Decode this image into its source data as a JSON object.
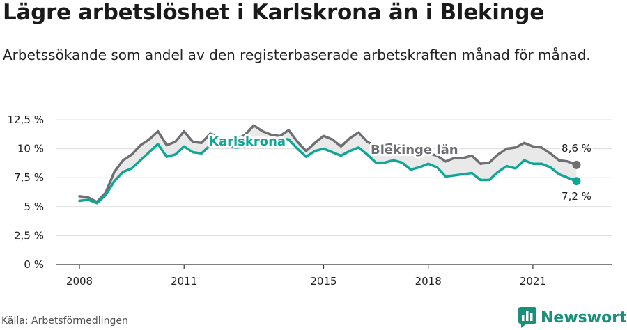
{
  "header": {
    "title": "Lägre arbetslöshet i Karlskrona än i Blekinge",
    "subtitle": "Arbetssökande som andel av den registerbaserade arbetskraften månad för månad."
  },
  "footer": {
    "source": "Källa: Arbetsförmedlingen",
    "brand": "Newsworthy"
  },
  "colors": {
    "karlskrona": "#10a696",
    "blekinge": "#6f6f73",
    "band": "#e4e4e4",
    "brand": "#1a8f7a"
  },
  "icons": {
    "brand_logo": "bar-chart-logo-icon"
  },
  "chart_data": {
    "type": "line",
    "title": "Lägre arbetslöshet i Karlskrona än i Blekinge",
    "subtitle": "Arbetssökande som andel av den registerbaserade arbetskraften månad för månad.",
    "xlim": [
      2008,
      2022.5
    ],
    "ylim": [
      0,
      12.5
    ],
    "x_ticks": [
      {
        "value": 2008,
        "label": "2008"
      },
      {
        "value": 2011,
        "label": "2011"
      },
      {
        "value": 2015,
        "label": "2015"
      },
      {
        "value": 2018,
        "label": "2018"
      },
      {
        "value": 2021,
        "label": "2021"
      }
    ],
    "y_ticks": [
      {
        "value": 0,
        "label": "0 %"
      },
      {
        "value": 2.5,
        "label": "2,5 %"
      },
      {
        "value": 5,
        "label": "5 %"
      },
      {
        "value": 7.5,
        "label": "7,5 %"
      },
      {
        "value": 10,
        "label": "10 %"
      },
      {
        "value": 12.5,
        "label": "12,5 %"
      }
    ],
    "grid": "horizontal",
    "series": [
      {
        "name": "Karlskrona",
        "label": "Karlskrona",
        "end_label": "7,2 %",
        "end_value": 7.2,
        "points": [
          [
            2008.0,
            5.5
          ],
          [
            2008.25,
            5.6
          ],
          [
            2008.5,
            5.3
          ],
          [
            2008.75,
            6.0
          ],
          [
            2009.0,
            7.2
          ],
          [
            2009.25,
            8.0
          ],
          [
            2009.5,
            8.3
          ],
          [
            2009.75,
            9.0
          ],
          [
            2010.0,
            9.7
          ],
          [
            2010.25,
            10.4
          ],
          [
            2010.5,
            9.3
          ],
          [
            2010.75,
            9.5
          ],
          [
            2011.0,
            10.2
          ],
          [
            2011.25,
            9.7
          ],
          [
            2011.5,
            9.6
          ],
          [
            2011.75,
            10.3
          ],
          [
            2012.0,
            10.3
          ],
          [
            2012.25,
            10.2
          ],
          [
            2012.5,
            10.1
          ],
          [
            2012.75,
            10.2
          ],
          [
            2013.0,
            10.5
          ],
          [
            2013.25,
            10.6
          ],
          [
            2013.5,
            10.7
          ],
          [
            2013.75,
            10.9
          ],
          [
            2014.0,
            10.8
          ],
          [
            2014.25,
            10.0
          ],
          [
            2014.5,
            9.3
          ],
          [
            2014.75,
            9.8
          ],
          [
            2015.0,
            10.0
          ],
          [
            2015.25,
            9.7
          ],
          [
            2015.5,
            9.4
          ],
          [
            2015.75,
            9.8
          ],
          [
            2016.0,
            10.1
          ],
          [
            2016.25,
            9.5
          ],
          [
            2016.5,
            8.8
          ],
          [
            2016.75,
            8.8
          ],
          [
            2017.0,
            9.0
          ],
          [
            2017.25,
            8.8
          ],
          [
            2017.5,
            8.2
          ],
          [
            2017.75,
            8.4
          ],
          [
            2018.0,
            8.7
          ],
          [
            2018.25,
            8.4
          ],
          [
            2018.5,
            7.6
          ],
          [
            2018.75,
            7.7
          ],
          [
            2019.0,
            7.8
          ],
          [
            2019.25,
            7.9
          ],
          [
            2019.5,
            7.3
          ],
          [
            2019.75,
            7.3
          ],
          [
            2020.0,
            8.0
          ],
          [
            2020.25,
            8.5
          ],
          [
            2020.5,
            8.3
          ],
          [
            2020.75,
            9.0
          ],
          [
            2021.0,
            8.7
          ],
          [
            2021.25,
            8.7
          ],
          [
            2021.5,
            8.4
          ],
          [
            2021.75,
            7.8
          ],
          [
            2022.0,
            7.5
          ],
          [
            2022.25,
            7.2
          ]
        ]
      },
      {
        "name": "Blekinge län",
        "label": "Blekinge län",
        "end_label": "8,6 %",
        "end_value": 8.6,
        "points": [
          [
            2008.0,
            5.9
          ],
          [
            2008.25,
            5.8
          ],
          [
            2008.5,
            5.4
          ],
          [
            2008.75,
            6.2
          ],
          [
            2009.0,
            8.0
          ],
          [
            2009.25,
            9.0
          ],
          [
            2009.5,
            9.5
          ],
          [
            2009.75,
            10.3
          ],
          [
            2010.0,
            10.8
          ],
          [
            2010.25,
            11.5
          ],
          [
            2010.5,
            10.3
          ],
          [
            2010.75,
            10.6
          ],
          [
            2011.0,
            11.5
          ],
          [
            2011.25,
            10.6
          ],
          [
            2011.5,
            10.5
          ],
          [
            2011.75,
            11.3
          ],
          [
            2012.0,
            11.0
          ],
          [
            2012.25,
            10.6
          ],
          [
            2012.5,
            10.8
          ],
          [
            2012.75,
            11.2
          ],
          [
            2013.0,
            12.0
          ],
          [
            2013.25,
            11.5
          ],
          [
            2013.5,
            11.2
          ],
          [
            2013.75,
            11.1
          ],
          [
            2014.0,
            11.6
          ],
          [
            2014.25,
            10.6
          ],
          [
            2014.5,
            9.8
          ],
          [
            2014.75,
            10.5
          ],
          [
            2015.0,
            11.1
          ],
          [
            2015.25,
            10.8
          ],
          [
            2015.5,
            10.2
          ],
          [
            2015.75,
            10.9
          ],
          [
            2016.0,
            11.4
          ],
          [
            2016.25,
            10.6
          ],
          [
            2016.5,
            10.2
          ],
          [
            2016.75,
            10.3
          ],
          [
            2017.0,
            10.4
          ],
          [
            2017.25,
            10.2
          ],
          [
            2017.5,
            9.5
          ],
          [
            2017.75,
            9.5
          ],
          [
            2018.0,
            9.6
          ],
          [
            2018.25,
            9.4
          ],
          [
            2018.5,
            8.9
          ],
          [
            2018.75,
            9.2
          ],
          [
            2019.0,
            9.2
          ],
          [
            2019.25,
            9.4
          ],
          [
            2019.5,
            8.7
          ],
          [
            2019.75,
            8.8
          ],
          [
            2020.0,
            9.5
          ],
          [
            2020.25,
            10.0
          ],
          [
            2020.5,
            10.1
          ],
          [
            2020.75,
            10.5
          ],
          [
            2021.0,
            10.2
          ],
          [
            2021.25,
            10.1
          ],
          [
            2021.5,
            9.6
          ],
          [
            2021.75,
            9.0
          ],
          [
            2022.0,
            8.9
          ],
          [
            2022.25,
            8.6
          ]
        ]
      }
    ]
  }
}
